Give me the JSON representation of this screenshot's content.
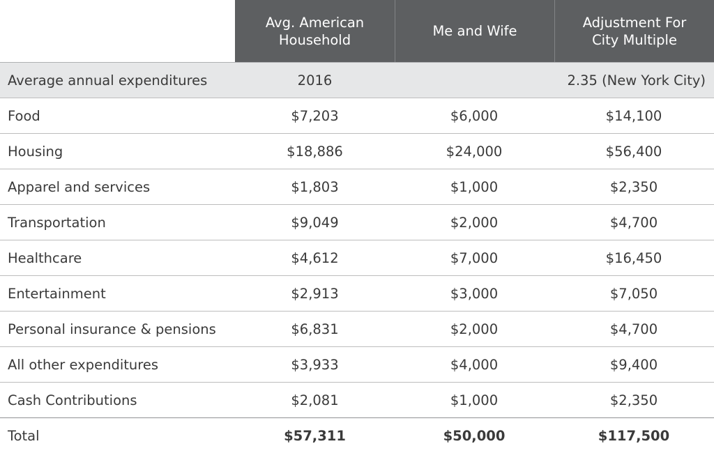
{
  "table": {
    "headers": [
      "",
      "Avg. American\nHousehold",
      "Me and Wife",
      "Adjustment For\nCity Multiple"
    ],
    "subheader": {
      "label": "Average annual expenditures",
      "col1": "2016",
      "col2": "",
      "col3": "2.35 (New York City)"
    },
    "rows": [
      {
        "label": "Food",
        "v1": "$7,203",
        "v2": "$6,000",
        "v3": "$14,100"
      },
      {
        "label": "Housing",
        "v1": "$18,886",
        "v2": "$24,000",
        "v3": "$56,400"
      },
      {
        "label": "Apparel and services",
        "v1": "$1,803",
        "v2": "$1,000",
        "v3": "$2,350"
      },
      {
        "label": "Transportation",
        "v1": "$9,049",
        "v2": "$2,000",
        "v3": "$4,700"
      },
      {
        "label": "Healthcare",
        "v1": "$4,612",
        "v2": "$7,000",
        "v3": "$16,450"
      },
      {
        "label": "Entertainment",
        "v1": "$2,913",
        "v2": "$3,000",
        "v3": "$7,050"
      },
      {
        "label": "Personal insurance & pensions",
        "v1": "$6,831",
        "v2": "$2,000",
        "v3": "$4,700"
      },
      {
        "label": "All other expenditures",
        "v1": "$3,933",
        "v2": "$4,000",
        "v3": "$9,400"
      },
      {
        "label": "Cash Contributions",
        "v1": "$2,081",
        "v2": "$1,000",
        "v3": "$2,350"
      }
    ],
    "total": {
      "label": "Total",
      "v1": "$57,311",
      "v2": "$50,000",
      "v3": "$117,500"
    }
  }
}
